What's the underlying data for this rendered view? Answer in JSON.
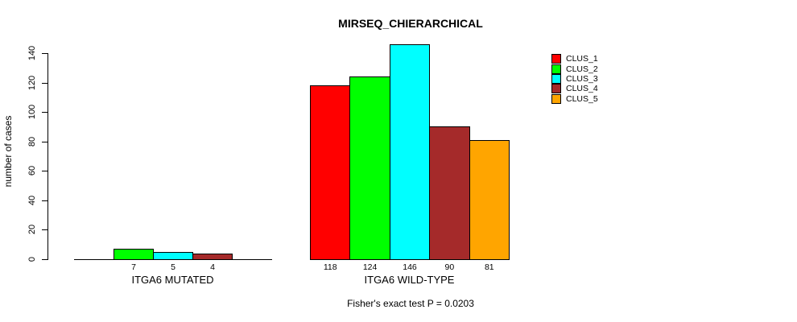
{
  "chart_data": {
    "type": "bar",
    "title": "MIRSEQ_CHIERARCHICAL",
    "ylabel": "number of cases",
    "ylim": [
      0,
      140
    ],
    "yticks": [
      0,
      20,
      40,
      60,
      80,
      100,
      120,
      140
    ],
    "grid": false,
    "legend_position": "top-right",
    "clusters": [
      {
        "name": "CLUS_1",
        "color": "#FF0000"
      },
      {
        "name": "CLUS_2",
        "color": "#00FF00"
      },
      {
        "name": "CLUS_3",
        "color": "#00FFFF"
      },
      {
        "name": "CLUS_4",
        "color": "#A52A2A"
      },
      {
        "name": "CLUS_5",
        "color": "#FFA500"
      }
    ],
    "categories": [
      "ITGA6 MUTATED",
      "ITGA6 WILD-TYPE"
    ],
    "series": [
      {
        "name": "CLUS_1",
        "values": [
          0,
          118
        ]
      },
      {
        "name": "CLUS_2",
        "values": [
          7,
          124
        ]
      },
      {
        "name": "CLUS_3",
        "values": [
          5,
          146
        ]
      },
      {
        "name": "CLUS_4",
        "values": [
          4,
          90
        ]
      },
      {
        "name": "CLUS_5",
        "values": [
          0,
          81
        ]
      }
    ],
    "zero_value_bars_hidden": true,
    "footnote": "Fisher's exact test P = 0.0203"
  }
}
